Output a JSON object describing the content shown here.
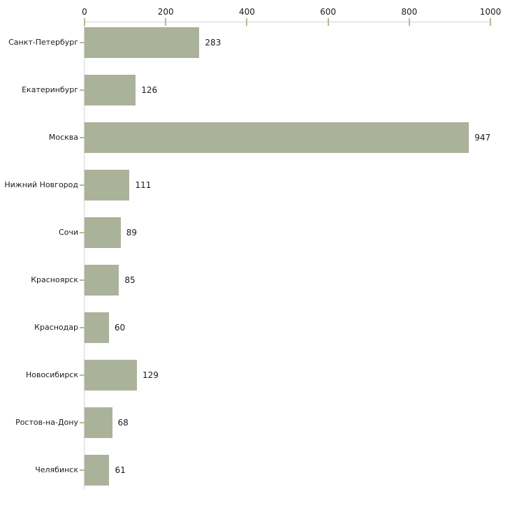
{
  "chart_data": {
    "type": "bar",
    "orientation": "horizontal",
    "title": "",
    "xlabel": "",
    "ylabel": "",
    "categories": [
      "Санкт-Петербург",
      "Екатеринбург",
      "Москва",
      "Нижний Новгород",
      "Сочи",
      "Красноярск",
      "Краснодар",
      "Новосибирск",
      "Ростов-на-Дону",
      "Челябинск"
    ],
    "values": [
      283,
      126,
      947,
      111,
      89,
      85,
      60,
      129,
      68,
      61
    ],
    "xlim": [
      0,
      1000
    ],
    "x_ticks": [
      0,
      200,
      400,
      600,
      800,
      1000
    ],
    "x_axis_position": "top",
    "grid": false,
    "legend": "none",
    "bar_color": "#abb29a",
    "axis_line_color": "#d4d4d4",
    "tick_color": "#b9ba8e",
    "text_color": "#1a1a1a"
  }
}
